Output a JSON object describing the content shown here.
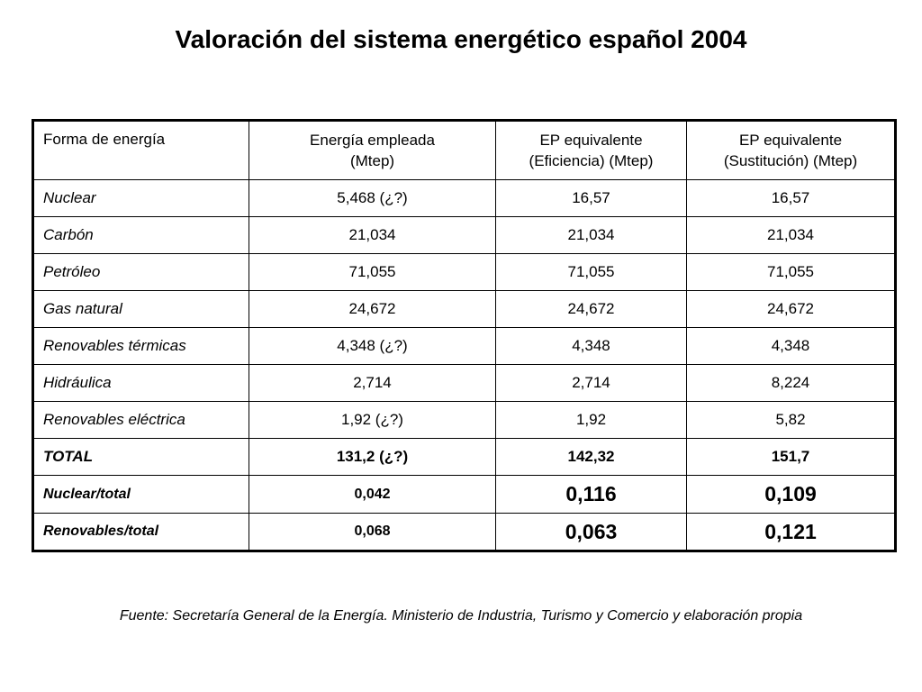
{
  "title": "Valoración del sistema energético español 2004",
  "table": {
    "headers": [
      {
        "line1": "Forma de energía",
        "line2": ""
      },
      {
        "line1": "Energía empleada",
        "line2": "(Mtep)"
      },
      {
        "line1": "EP equivalente",
        "line2": "(Eficiencia) (Mtep)"
      },
      {
        "line1": "EP equivalente",
        "line2": "(Sustitución) (Mtep)"
      }
    ],
    "rows": [
      {
        "label": "Nuclear",
        "values": [
          "5,468 (¿?)",
          "16,57",
          "16,57"
        ]
      },
      {
        "label": "Carbón",
        "values": [
          "21,034",
          "21,034",
          "21,034"
        ]
      },
      {
        "label": "Petróleo",
        "values": [
          "71,055",
          "71,055",
          "71,055"
        ]
      },
      {
        "label": "Gas natural",
        "values": [
          "24,672",
          "24,672",
          "24,672"
        ]
      },
      {
        "label": "Renovables térmicas",
        "values": [
          "4,348 (¿?)",
          "4,348",
          "4,348"
        ]
      },
      {
        "label": "Hidráulica",
        "values": [
          "2,714",
          "2,714",
          "8,224"
        ]
      },
      {
        "label": "Renovables eléctrica",
        "values": [
          "1,92 (¿?)",
          "1,92",
          "5,82"
        ]
      },
      {
        "label": "TOTAL",
        "values": [
          "131,2 (¿?)",
          "142,32",
          "151,7"
        ]
      },
      {
        "label": "Nuclear/total",
        "values": [
          "0,042",
          "0,116",
          "0,109"
        ]
      },
      {
        "label": "Renovables/total",
        "values": [
          "0,068",
          "0,063",
          "0,121"
        ]
      }
    ]
  },
  "source": "Fuente: Secretaría General de la Energía. Ministerio de Industria, Turismo y Comercio y elaboración propia"
}
